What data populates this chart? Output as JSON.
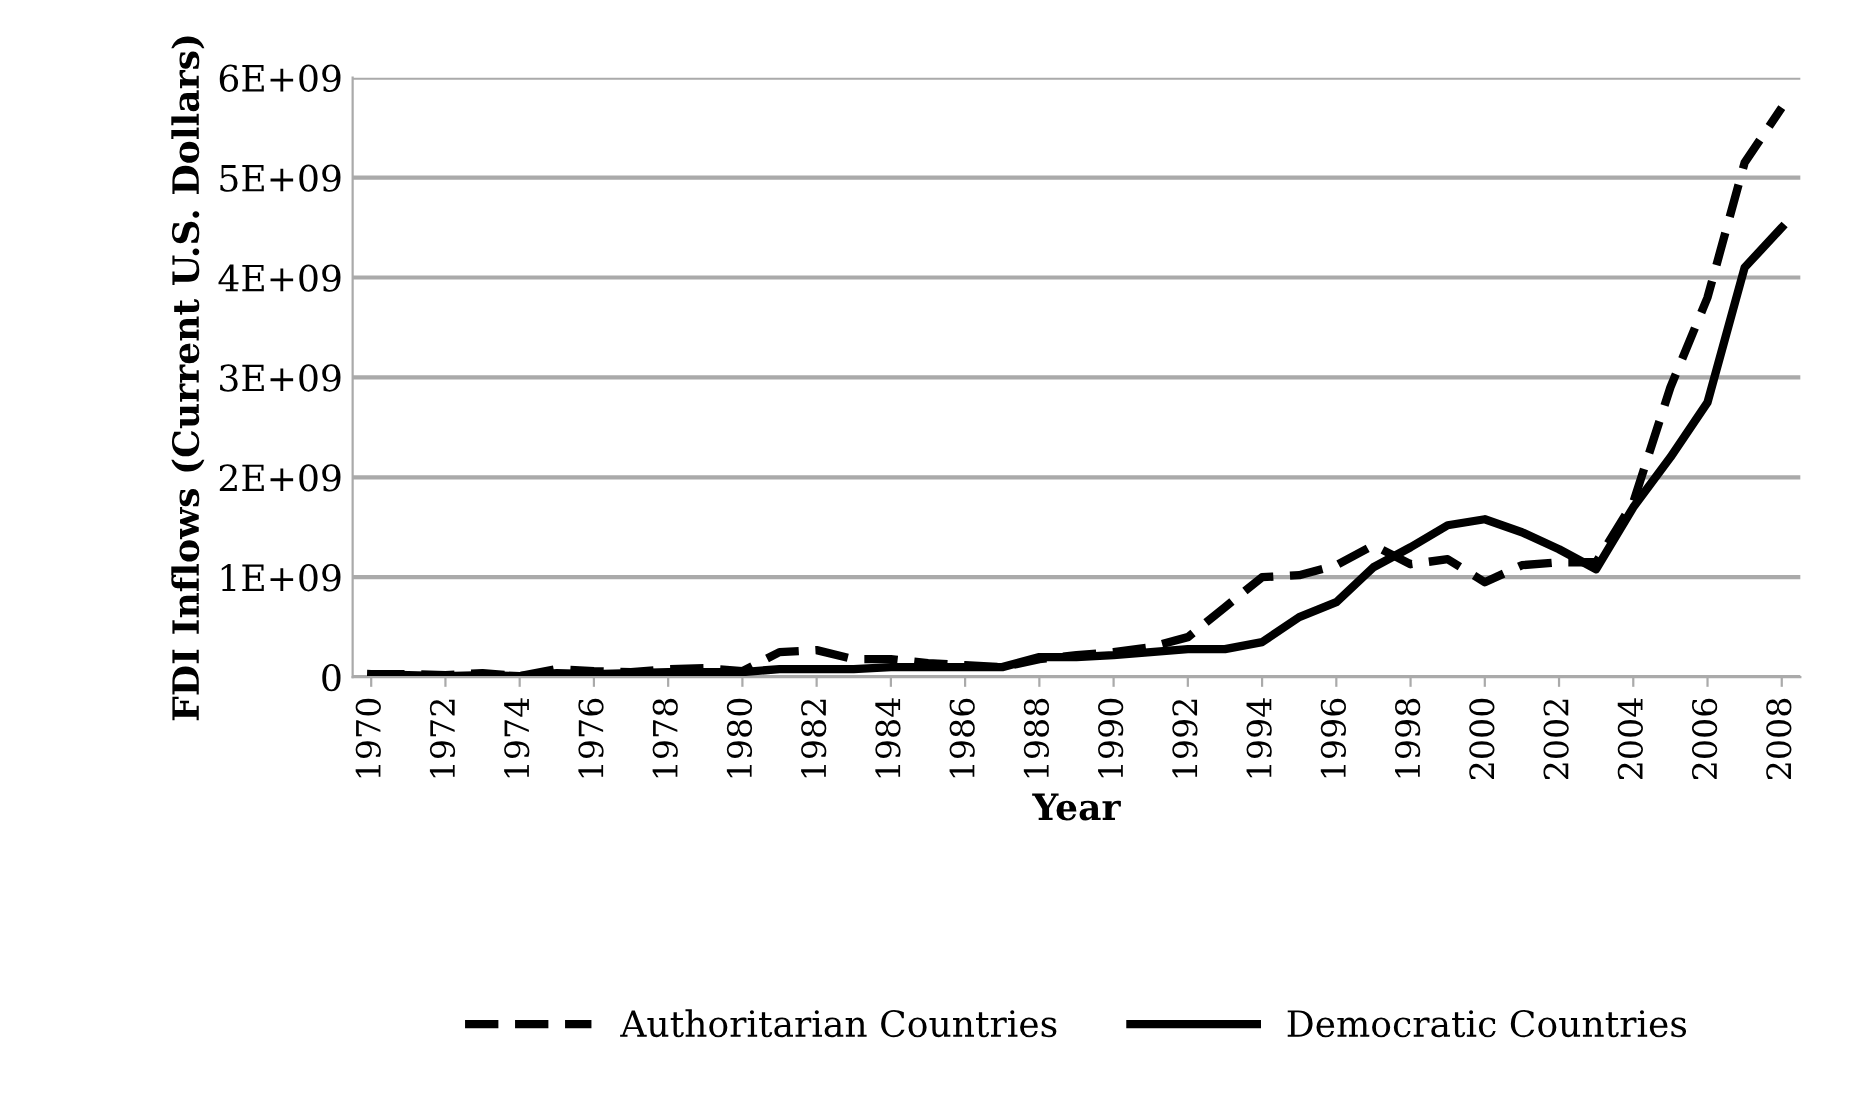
{
  "chart_data": {
    "type": "line",
    "xlabel": "Year",
    "ylabel": "FDI Inflows (Current U.S. Dollars)",
    "x": [
      1970,
      1971,
      1972,
      1973,
      1974,
      1975,
      1976,
      1977,
      1978,
      1979,
      1980,
      1981,
      1982,
      1983,
      1984,
      1985,
      1986,
      1987,
      1988,
      1989,
      1990,
      1991,
      1992,
      1993,
      1994,
      1995,
      1996,
      1997,
      1998,
      1999,
      2000,
      2001,
      2002,
      2003,
      2004,
      2005,
      2006,
      2007,
      2008
    ],
    "series": [
      {
        "name": "Authoritarian Countries",
        "color": "#000000",
        "line_style": "dashed",
        "values": [
          30000000.0,
          30000000.0,
          20000000.0,
          40000000.0,
          10000000.0,
          80000000.0,
          60000000.0,
          50000000.0,
          80000000.0,
          90000000.0,
          60000000.0,
          250000000.0,
          270000000.0,
          180000000.0,
          180000000.0,
          140000000.0,
          120000000.0,
          100000000.0,
          180000000.0,
          220000000.0,
          250000000.0,
          300000000.0,
          400000000.0,
          700000000.0,
          1000000000.0,
          1020000000.0,
          1120000000.0,
          1320000000.0,
          1130000000.0,
          1180000000.0,
          950000000.0,
          1120000000.0,
          1150000000.0,
          1150000000.0,
          1750000000.0,
          2900000000.0,
          3800000000.0,
          5150000000.0,
          5700000000.0
        ]
      },
      {
        "name": "Democratic Countries",
        "color": "#000000",
        "line_style": "solid",
        "values": [
          30000000.0,
          20000000.0,
          10000000.0,
          20000000.0,
          10000000.0,
          40000000.0,
          30000000.0,
          40000000.0,
          50000000.0,
          50000000.0,
          50000000.0,
          80000000.0,
          80000000.0,
          80000000.0,
          100000000.0,
          100000000.0,
          100000000.0,
          100000000.0,
          200000000.0,
          200000000.0,
          220000000.0,
          250000000.0,
          280000000.0,
          280000000.0,
          350000000.0,
          600000000.0,
          750000000.0,
          1100000000.0,
          1300000000.0,
          1520000000.0,
          1580000000.0,
          1450000000.0,
          1280000000.0,
          1080000000.0,
          1700000000.0,
          2200000000.0,
          2750000000.0,
          4100000000.0,
          4500000000.0
        ]
      }
    ],
    "xlim": [
      1969.5,
      2008.5
    ],
    "xticks": [
      1970,
      1972,
      1974,
      1976,
      1978,
      1980,
      1982,
      1984,
      1986,
      1988,
      1990,
      1992,
      1994,
      1996,
      1998,
      2000,
      2002,
      2004,
      2006,
      2008
    ],
    "ylim": [
      0,
      6000000000.0
    ],
    "yticks": [
      {
        "value": 0,
        "label": "0"
      },
      {
        "value": 1000000000.0,
        "label": "1E+09"
      },
      {
        "value": 2000000000.0,
        "label": "2E+09"
      },
      {
        "value": 3000000000.0,
        "label": "3E+09"
      },
      {
        "value": 4000000000.0,
        "label": "4E+09"
      },
      {
        "value": 5000000000.0,
        "label": "5E+09"
      },
      {
        "value": 6000000000.0,
        "label": "6E+09"
      }
    ],
    "grid": "y",
    "legend": "bottom"
  }
}
